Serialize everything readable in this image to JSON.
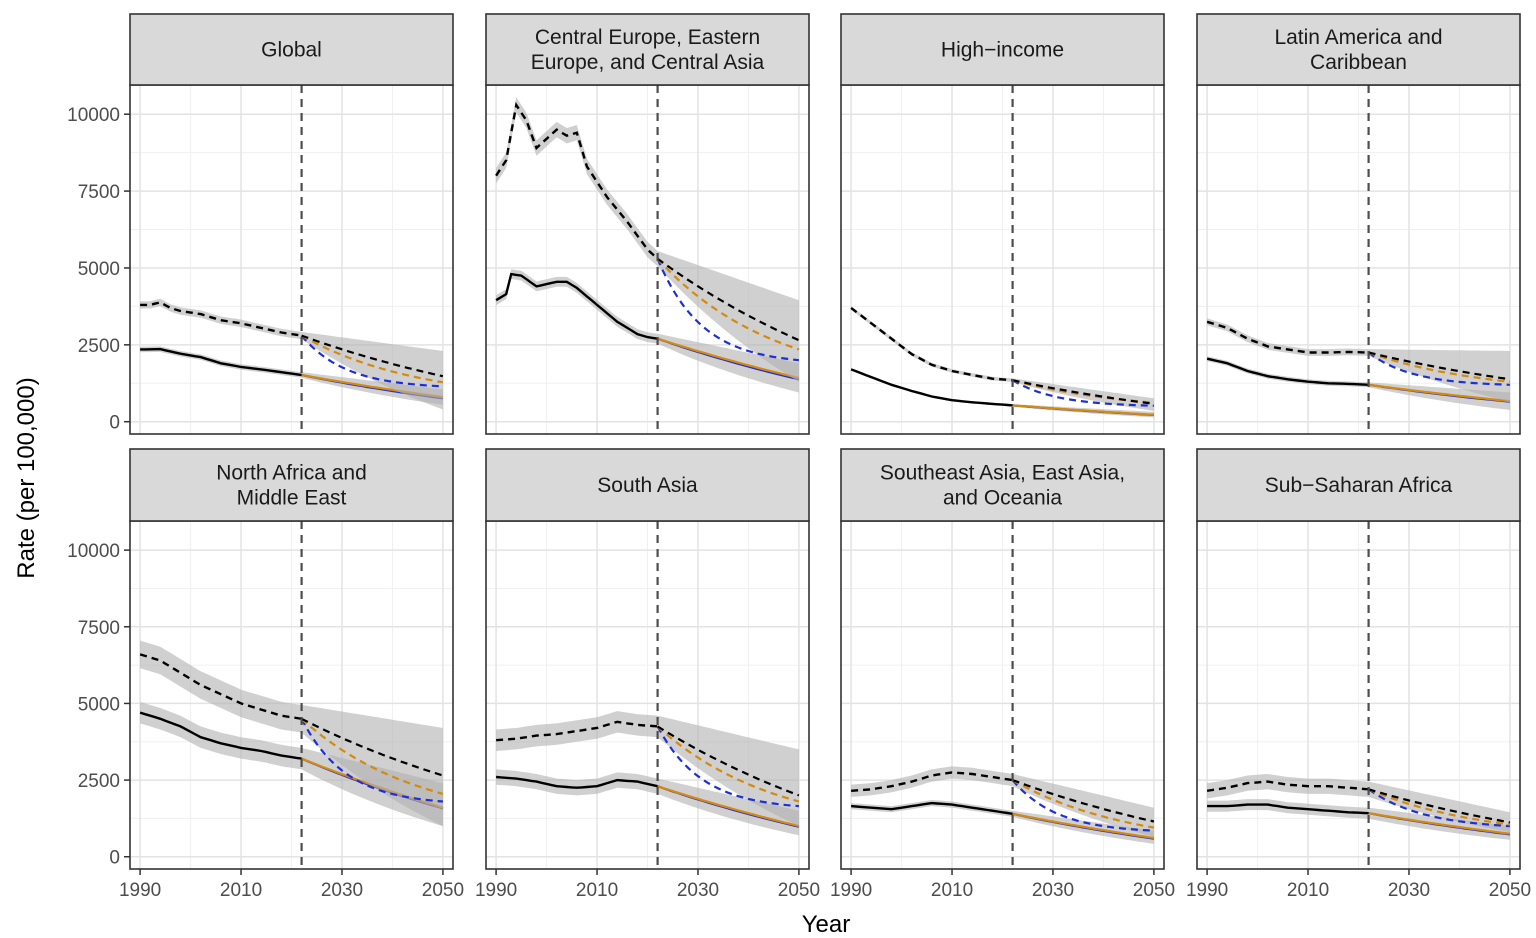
{
  "chart_data": {
    "type": "line",
    "xlabel": "Year",
    "ylabel": "Rate (per 100,000)",
    "xlim": [
      1988,
      2052
    ],
    "ylim": [
      -400,
      10950
    ],
    "x_ticks": [
      1990,
      2010,
      2030,
      2050
    ],
    "y_ticks": [
      0,
      2500,
      5000,
      7500,
      10000
    ],
    "forecast_start_year": 2022,
    "grid": true,
    "legend": "none",
    "colors": {
      "history": "#000000",
      "reference": "#000000",
      "scenario_orange": "#d4890f",
      "scenario_blue": "#1f2fd6",
      "interval": "#b0b0b0",
      "forecast_line": "#4d4d4d"
    },
    "panels": [
      {
        "title_lines": [
          "Global"
        ],
        "solid": {
          "hist": [
            [
              1990,
              2350
            ],
            [
              1994,
              2360
            ],
            [
              1998,
              2210
            ],
            [
              2002,
              2100
            ],
            [
              2006,
              1900
            ],
            [
              2010,
              1780
            ],
            [
              2014,
              1700
            ],
            [
              2018,
              1610
            ],
            [
              2022,
              1520
            ]
          ],
          "hist_band": 90,
          "ref_end": 820,
          "orange_end": 800,
          "blue_end": 760,
          "band_end": [
            550,
            1050
          ]
        },
        "dashed": {
          "hist": [
            [
              1990,
              3800
            ],
            [
              1992,
              3800
            ],
            [
              1994,
              3880
            ],
            [
              1996,
              3700
            ],
            [
              1998,
              3600
            ],
            [
              2002,
              3500
            ],
            [
              2006,
              3300
            ],
            [
              2010,
              3200
            ],
            [
              2014,
              3050
            ],
            [
              2018,
              2900
            ],
            [
              2022,
              2800
            ]
          ],
          "hist_band": 120,
          "ref_end": 1480,
          "orange_end": 1280,
          "blue_end": 1150,
          "band_end": [
            400,
            2300
          ],
          "blue_k": 3.2
        }
      },
      {
        "title_lines": [
          "Central Europe, Eastern",
          "Europe, and Central Asia"
        ],
        "solid": {
          "hist": [
            [
              1990,
              3950
            ],
            [
              1992,
              4150
            ],
            [
              1993,
              4800
            ],
            [
              1995,
              4750
            ],
            [
              1998,
              4400
            ],
            [
              2002,
              4550
            ],
            [
              2004,
              4550
            ],
            [
              2006,
              4350
            ],
            [
              2010,
              3800
            ],
            [
              2014,
              3250
            ],
            [
              2018,
              2850
            ],
            [
              2020,
              2750
            ],
            [
              2022,
              2700
            ]
          ],
          "hist_band": 160,
          "ref_end": 1450,
          "orange_end": 1420,
          "blue_end": 1380,
          "band_end": [
            950,
            1900
          ]
        },
        "dashed": {
          "hist": [
            [
              1990,
              8000
            ],
            [
              1992,
              8500
            ],
            [
              1994,
              10300
            ],
            [
              1996,
              9800
            ],
            [
              1998,
              8900
            ],
            [
              2000,
              9200
            ],
            [
              2002,
              9500
            ],
            [
              2004,
              9300
            ],
            [
              2006,
              9400
            ],
            [
              2008,
              8300
            ],
            [
              2012,
              7300
            ],
            [
              2016,
              6500
            ],
            [
              2020,
              5600
            ],
            [
              2022,
              5300
            ]
          ],
          "hist_band": 250,
          "ref_end": 2650,
          "orange_end": 2350,
          "blue_end": 2000,
          "band_end": [
            1300,
            3950
          ],
          "blue_k": 3.2
        }
      },
      {
        "title_lines": [
          "High−income"
        ],
        "solid": {
          "hist": [
            [
              1990,
              1700
            ],
            [
              1994,
              1450
            ],
            [
              1998,
              1200
            ],
            [
              2002,
              1000
            ],
            [
              2006,
              820
            ],
            [
              2010,
              700
            ],
            [
              2014,
              630
            ],
            [
              2018,
              580
            ],
            [
              2022,
              530
            ]
          ],
          "hist_band": 40,
          "ref_end": 230,
          "orange_end": 225,
          "blue_end": 220,
          "band_end": [
            140,
            320
          ]
        },
        "dashed": {
          "hist": [
            [
              1990,
              3700
            ],
            [
              1994,
              3200
            ],
            [
              1998,
              2700
            ],
            [
              2002,
              2200
            ],
            [
              2006,
              1850
            ],
            [
              2010,
              1650
            ],
            [
              2014,
              1520
            ],
            [
              2018,
              1400
            ],
            [
              2022,
              1350
            ]
          ],
          "hist_band": 60,
          "ref_end": 580,
          "orange_end": 620,
          "blue_end": 520,
          "band_end": [
            350,
            760
          ],
          "blue_k": 3.2
        }
      },
      {
        "title_lines": [
          "Latin America and",
          "Caribbean"
        ],
        "solid": {
          "hist": [
            [
              1990,
              2050
            ],
            [
              1994,
              1900
            ],
            [
              1998,
              1650
            ],
            [
              2002,
              1480
            ],
            [
              2006,
              1380
            ],
            [
              2010,
              1300
            ],
            [
              2014,
              1250
            ],
            [
              2018,
              1230
            ],
            [
              2022,
              1200
            ]
          ],
          "hist_band": 80,
          "ref_end": 680,
          "orange_end": 670,
          "blue_end": 650,
          "band_end": [
            380,
            950
          ]
        },
        "dashed": {
          "hist": [
            [
              1990,
              3250
            ],
            [
              1994,
              3050
            ],
            [
              1998,
              2700
            ],
            [
              2002,
              2450
            ],
            [
              2006,
              2350
            ],
            [
              2010,
              2250
            ],
            [
              2014,
              2250
            ],
            [
              2018,
              2270
            ],
            [
              2022,
              2250
            ]
          ],
          "hist_band": 110,
          "ref_end": 1380,
          "orange_end": 1300,
          "blue_end": 1200,
          "band_end": [
            650,
            2300
          ],
          "blue_k": 3.2
        }
      },
      {
        "title_lines": [
          "North Africa and",
          "Middle East"
        ],
        "solid": {
          "hist": [
            [
              1990,
              4700
            ],
            [
              1994,
              4500
            ],
            [
              1998,
              4250
            ],
            [
              2002,
              3900
            ],
            [
              2006,
              3700
            ],
            [
              2010,
              3550
            ],
            [
              2014,
              3450
            ],
            [
              2018,
              3300
            ],
            [
              2022,
              3200
            ]
          ],
          "hist_band": 350,
          "ref_end": 1650,
          "orange_end": 1600,
          "blue_end": 1580,
          "band_end": [
            1000,
            2400
          ]
        },
        "dashed": {
          "hist": [
            [
              1990,
              6600
            ],
            [
              1994,
              6400
            ],
            [
              1998,
              6000
            ],
            [
              2002,
              5600
            ],
            [
              2006,
              5300
            ],
            [
              2010,
              5000
            ],
            [
              2014,
              4800
            ],
            [
              2018,
              4600
            ],
            [
              2022,
              4500
            ]
          ],
          "hist_band": 450,
          "ref_end": 2650,
          "orange_end": 2050,
          "blue_end": 1800,
          "band_end": [
            1000,
            4200
          ],
          "blue_k": 3.2
        }
      },
      {
        "title_lines": [
          "South Asia"
        ],
        "solid": {
          "hist": [
            [
              1990,
              2600
            ],
            [
              1994,
              2550
            ],
            [
              1998,
              2450
            ],
            [
              2002,
              2300
            ],
            [
              2006,
              2250
            ],
            [
              2010,
              2300
            ],
            [
              2014,
              2500
            ],
            [
              2018,
              2450
            ],
            [
              2022,
              2300
            ]
          ],
          "hist_band": 250,
          "ref_end": 1020,
          "orange_end": 1000,
          "blue_end": 980,
          "band_end": [
            700,
            1500
          ]
        },
        "dashed": {
          "hist": [
            [
              1990,
              3800
            ],
            [
              1994,
              3850
            ],
            [
              1998,
              3950
            ],
            [
              2002,
              4000
            ],
            [
              2006,
              4100
            ],
            [
              2010,
              4200
            ],
            [
              2014,
              4400
            ],
            [
              2018,
              4300
            ],
            [
              2022,
              4250
            ]
          ],
          "hist_band": 350,
          "ref_end": 2000,
          "orange_end": 1800,
          "blue_end": 1650,
          "band_end": [
            1000,
            3500
          ],
          "blue_k": 3.2
        }
      },
      {
        "title_lines": [
          "Southeast Asia, East Asia,",
          "and Oceania"
        ],
        "solid": {
          "hist": [
            [
              1990,
              1650
            ],
            [
              1994,
              1600
            ],
            [
              1998,
              1550
            ],
            [
              2002,
              1650
            ],
            [
              2006,
              1750
            ],
            [
              2010,
              1700
            ],
            [
              2014,
              1600
            ],
            [
              2018,
              1500
            ],
            [
              2022,
              1400
            ]
          ],
          "hist_band": 100,
          "ref_end": 620,
          "orange_end": 610,
          "blue_end": 590,
          "band_end": [
            420,
            850
          ]
        },
        "dashed": {
          "hist": [
            [
              1990,
              2150
            ],
            [
              1994,
              2200
            ],
            [
              1998,
              2300
            ],
            [
              2002,
              2450
            ],
            [
              2006,
              2650
            ],
            [
              2010,
              2750
            ],
            [
              2014,
              2700
            ],
            [
              2018,
              2600
            ],
            [
              2022,
              2500
            ]
          ],
          "hist_band": 200,
          "ref_end": 1150,
          "orange_end": 950,
          "blue_end": 850,
          "band_end": [
            650,
            1600
          ],
          "blue_k": 3.2
        }
      },
      {
        "title_lines": [
          "Sub−Saharan Africa"
        ],
        "solid": {
          "hist": [
            [
              1990,
              1650
            ],
            [
              1994,
              1650
            ],
            [
              1998,
              1700
            ],
            [
              2002,
              1700
            ],
            [
              2006,
              1600
            ],
            [
              2010,
              1550
            ],
            [
              2014,
              1500
            ],
            [
              2018,
              1450
            ],
            [
              2022,
              1420
            ]
          ],
          "hist_band": 180,
          "ref_end": 760,
          "orange_end": 750,
          "blue_end": 730,
          "band_end": [
            550,
            1000
          ]
        },
        "dashed": {
          "hist": [
            [
              1990,
              2150
            ],
            [
              1994,
              2250
            ],
            [
              1998,
              2400
            ],
            [
              2002,
              2450
            ],
            [
              2006,
              2350
            ],
            [
              2010,
              2300
            ],
            [
              2014,
              2300
            ],
            [
              2018,
              2250
            ],
            [
              2022,
              2200
            ]
          ],
          "hist_band": 250,
          "ref_end": 1120,
          "orange_end": 1050,
          "blue_end": 1000,
          "band_end": [
            800,
            1450
          ],
          "blue_k": 2.5
        }
      }
    ]
  }
}
